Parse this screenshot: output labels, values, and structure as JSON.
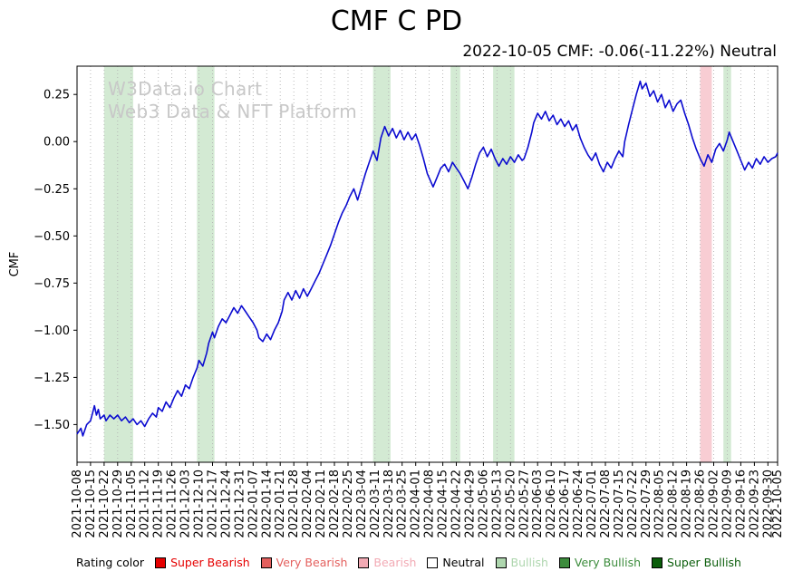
{
  "title": "CMF C PD",
  "subtitle": "2022-10-05 CMF: -0.06(-11.22%) Neutral",
  "watermark": {
    "line1": "W3Data.io Chart",
    "line2": "Web3 Data & NFT Platform"
  },
  "legend": {
    "label": "Rating color",
    "items": [
      {
        "label": "Super Bearish",
        "color": "#e50000",
        "text_color": "#e50000"
      },
      {
        "label": "Very Bearish",
        "color": "#e4605e",
        "text_color": "#e4605e"
      },
      {
        "label": "Bearish",
        "color": "#f2aab4",
        "text_color": "#f2aab4"
      },
      {
        "label": "Neutral",
        "color": "#ffffff",
        "text_color": "#000000"
      },
      {
        "label": "Bullish",
        "color": "#aed6ae",
        "text_color": "#aed6ae"
      },
      {
        "label": "Very Bullish",
        "color": "#3c8c3c",
        "text_color": "#3c8c3c"
      },
      {
        "label": "Super Bullish",
        "color": "#0a5d0a",
        "text_color": "#0a5d0a"
      }
    ]
  },
  "chart_data": {
    "type": "line",
    "title": "CMF C PD",
    "ylabel": "CMF",
    "x_axis": "weekly date ticks from 2021-10-08 to 2022-10-05 (x unit = days since 2021-10-08)",
    "x_max_day": 362,
    "ylim": [
      -1.7,
      0.4
    ],
    "grid": "vertical dotted gridlines at every date tick, no horizontal gridlines",
    "legend_position": "bottom",
    "line_color": "#0b0bd0",
    "y_ticks": [
      [
        0.25,
        "0.25"
      ],
      [
        0.0,
        "0.00"
      ],
      [
        -0.25,
        "−0.25"
      ],
      [
        -0.5,
        "−0.50"
      ],
      [
        -0.75,
        "−0.75"
      ],
      [
        -1.0,
        "−1.00"
      ],
      [
        -1.25,
        "−1.25"
      ],
      [
        -1.5,
        "−1.50"
      ]
    ],
    "x_ticks": [
      [
        0,
        "2021-10-08"
      ],
      [
        7,
        "2021-10-15"
      ],
      [
        14,
        "2021-10-22"
      ],
      [
        21,
        "2021-10-29"
      ],
      [
        28,
        "2021-11-05"
      ],
      [
        35,
        "2021-11-12"
      ],
      [
        42,
        "2021-11-19"
      ],
      [
        49,
        "2021-11-26"
      ],
      [
        56,
        "2021-12-03"
      ],
      [
        63,
        "2021-12-10"
      ],
      [
        70,
        "2021-12-17"
      ],
      [
        77,
        "2021-12-24"
      ],
      [
        84,
        "2021-12-31"
      ],
      [
        91,
        "2022-01-07"
      ],
      [
        98,
        "2022-01-14"
      ],
      [
        105,
        "2022-01-21"
      ],
      [
        112,
        "2022-01-28"
      ],
      [
        119,
        "2022-02-04"
      ],
      [
        126,
        "2022-02-11"
      ],
      [
        133,
        "2022-02-18"
      ],
      [
        140,
        "2022-02-25"
      ],
      [
        147,
        "2022-03-04"
      ],
      [
        154,
        "2022-03-11"
      ],
      [
        161,
        "2022-03-18"
      ],
      [
        168,
        "2022-03-25"
      ],
      [
        175,
        "2022-04-01"
      ],
      [
        182,
        "2022-04-08"
      ],
      [
        189,
        "2022-04-15"
      ],
      [
        196,
        "2022-04-22"
      ],
      [
        203,
        "2022-04-29"
      ],
      [
        210,
        "2022-05-06"
      ],
      [
        217,
        "2022-05-13"
      ],
      [
        224,
        "2022-05-20"
      ],
      [
        231,
        "2022-05-27"
      ],
      [
        238,
        "2022-06-03"
      ],
      [
        245,
        "2022-06-10"
      ],
      [
        252,
        "2022-06-17"
      ],
      [
        259,
        "2022-06-24"
      ],
      [
        266,
        "2022-07-01"
      ],
      [
        273,
        "2022-07-08"
      ],
      [
        280,
        "2022-07-15"
      ],
      [
        287,
        "2022-07-22"
      ],
      [
        294,
        "2022-07-29"
      ],
      [
        301,
        "2022-08-05"
      ],
      [
        308,
        "2022-08-12"
      ],
      [
        315,
        "2022-08-19"
      ],
      [
        322,
        "2022-08-26"
      ],
      [
        329,
        "2022-09-02"
      ],
      [
        336,
        "2022-09-09"
      ],
      [
        343,
        "2022-09-16"
      ],
      [
        350,
        "2022-09-23"
      ],
      [
        357,
        "2022-09-30"
      ],
      [
        362,
        "2022-10-05"
      ]
    ],
    "band_colors": {
      "Bullish": "rgba(140,200,140,0.38)",
      "Bearish": "rgba(238,130,145,0.40)"
    },
    "bands": [
      {
        "start_day": 14,
        "end_day": 29,
        "rating": "Bullish"
      },
      {
        "start_day": 62,
        "end_day": 71,
        "rating": "Bullish"
      },
      {
        "start_day": 153,
        "end_day": 162,
        "rating": "Bullish"
      },
      {
        "start_day": 193,
        "end_day": 198,
        "rating": "Bullish"
      },
      {
        "start_day": 215,
        "end_day": 226,
        "rating": "Bullish"
      },
      {
        "start_day": 322,
        "end_day": 328,
        "rating": "Bearish"
      },
      {
        "start_day": 334,
        "end_day": 338,
        "rating": "Bullish"
      }
    ],
    "last_value": {
      "date": "2022-10-05",
      "cmf": -0.06,
      "change_pct": -11.22,
      "rating": "Neutral"
    },
    "series": [
      {
        "name": "CMF",
        "points": [
          [
            0,
            -1.55
          ],
          [
            2,
            -1.52
          ],
          [
            3,
            -1.56
          ],
          [
            5,
            -1.5
          ],
          [
            7,
            -1.48
          ],
          [
            8,
            -1.44
          ],
          [
            9,
            -1.4
          ],
          [
            10,
            -1.45
          ],
          [
            11,
            -1.42
          ],
          [
            12,
            -1.47
          ],
          [
            14,
            -1.45
          ],
          [
            15,
            -1.48
          ],
          [
            17,
            -1.45
          ],
          [
            19,
            -1.47
          ],
          [
            21,
            -1.45
          ],
          [
            23,
            -1.48
          ],
          [
            25,
            -1.46
          ],
          [
            27,
            -1.49
          ],
          [
            29,
            -1.47
          ],
          [
            31,
            -1.5
          ],
          [
            33,
            -1.48
          ],
          [
            35,
            -1.51
          ],
          [
            37,
            -1.47
          ],
          [
            39,
            -1.44
          ],
          [
            41,
            -1.46
          ],
          [
            42,
            -1.41
          ],
          [
            44,
            -1.43
          ],
          [
            46,
            -1.38
          ],
          [
            48,
            -1.41
          ],
          [
            50,
            -1.36
          ],
          [
            52,
            -1.32
          ],
          [
            54,
            -1.35
          ],
          [
            56,
            -1.29
          ],
          [
            58,
            -1.31
          ],
          [
            60,
            -1.25
          ],
          [
            62,
            -1.2
          ],
          [
            63,
            -1.16
          ],
          [
            65,
            -1.19
          ],
          [
            67,
            -1.12
          ],
          [
            68,
            -1.07
          ],
          [
            70,
            -1.01
          ],
          [
            71,
            -1.04
          ],
          [
            73,
            -0.98
          ],
          [
            75,
            -0.94
          ],
          [
            77,
            -0.96
          ],
          [
            79,
            -0.92
          ],
          [
            81,
            -0.88
          ],
          [
            83,
            -0.91
          ],
          [
            85,
            -0.87
          ],
          [
            87,
            -0.9
          ],
          [
            89,
            -0.93
          ],
          [
            91,
            -0.96
          ],
          [
            93,
            -1.0
          ],
          [
            94,
            -1.04
          ],
          [
            96,
            -1.06
          ],
          [
            98,
            -1.02
          ],
          [
            100,
            -1.05
          ],
          [
            102,
            -1.0
          ],
          [
            104,
            -0.96
          ],
          [
            106,
            -0.9
          ],
          [
            107,
            -0.84
          ],
          [
            109,
            -0.8
          ],
          [
            111,
            -0.84
          ],
          [
            113,
            -0.79
          ],
          [
            115,
            -0.83
          ],
          [
            117,
            -0.78
          ],
          [
            119,
            -0.82
          ],
          [
            121,
            -0.78
          ],
          [
            123,
            -0.74
          ],
          [
            125,
            -0.7
          ],
          [
            127,
            -0.65
          ],
          [
            129,
            -0.6
          ],
          [
            131,
            -0.55
          ],
          [
            133,
            -0.49
          ],
          [
            135,
            -0.43
          ],
          [
            137,
            -0.38
          ],
          [
            139,
            -0.34
          ],
          [
            141,
            -0.29
          ],
          [
            143,
            -0.25
          ],
          [
            145,
            -0.31
          ],
          [
            147,
            -0.24
          ],
          [
            149,
            -0.17
          ],
          [
            151,
            -0.11
          ],
          [
            153,
            -0.05
          ],
          [
            155,
            -0.1
          ],
          [
            157,
            0.02
          ],
          [
            159,
            0.08
          ],
          [
            161,
            0.03
          ],
          [
            163,
            0.07
          ],
          [
            165,
            0.02
          ],
          [
            167,
            0.06
          ],
          [
            169,
            0.01
          ],
          [
            171,
            0.05
          ],
          [
            173,
            0.01
          ],
          [
            175,
            0.04
          ],
          [
            177,
            -0.02
          ],
          [
            179,
            -0.09
          ],
          [
            181,
            -0.17
          ],
          [
            184,
            -0.24
          ],
          [
            186,
            -0.19
          ],
          [
            188,
            -0.14
          ],
          [
            190,
            -0.12
          ],
          [
            192,
            -0.16
          ],
          [
            194,
            -0.11
          ],
          [
            196,
            -0.14
          ],
          [
            198,
            -0.17
          ],
          [
            200,
            -0.21
          ],
          [
            202,
            -0.25
          ],
          [
            204,
            -0.19
          ],
          [
            206,
            -0.12
          ],
          [
            208,
            -0.06
          ],
          [
            210,
            -0.03
          ],
          [
            212,
            -0.08
          ],
          [
            214,
            -0.04
          ],
          [
            216,
            -0.09
          ],
          [
            218,
            -0.13
          ],
          [
            220,
            -0.09
          ],
          [
            222,
            -0.12
          ],
          [
            224,
            -0.08
          ],
          [
            226,
            -0.11
          ],
          [
            228,
            -0.07
          ],
          [
            230,
            -0.1
          ],
          [
            231,
            -0.09
          ],
          [
            233,
            -0.03
          ],
          [
            235,
            0.05
          ],
          [
            236,
            0.1
          ],
          [
            238,
            0.15
          ],
          [
            240,
            0.12
          ],
          [
            242,
            0.16
          ],
          [
            244,
            0.11
          ],
          [
            246,
            0.14
          ],
          [
            248,
            0.09
          ],
          [
            250,
            0.12
          ],
          [
            252,
            0.08
          ],
          [
            254,
            0.11
          ],
          [
            256,
            0.06
          ],
          [
            258,
            0.09
          ],
          [
            260,
            0.02
          ],
          [
            262,
            -0.03
          ],
          [
            264,
            -0.07
          ],
          [
            266,
            -0.1
          ],
          [
            268,
            -0.06
          ],
          [
            270,
            -0.12
          ],
          [
            272,
            -0.16
          ],
          [
            274,
            -0.11
          ],
          [
            276,
            -0.14
          ],
          [
            278,
            -0.09
          ],
          [
            280,
            -0.05
          ],
          [
            282,
            -0.08
          ],
          [
            283,
            0.0
          ],
          [
            285,
            0.09
          ],
          [
            287,
            0.17
          ],
          [
            289,
            0.25
          ],
          [
            291,
            0.32
          ],
          [
            292,
            0.28
          ],
          [
            294,
            0.31
          ],
          [
            296,
            0.24
          ],
          [
            298,
            0.27
          ],
          [
            300,
            0.21
          ],
          [
            302,
            0.25
          ],
          [
            304,
            0.18
          ],
          [
            306,
            0.22
          ],
          [
            308,
            0.16
          ],
          [
            310,
            0.2
          ],
          [
            312,
            0.22
          ],
          [
            314,
            0.15
          ],
          [
            316,
            0.09
          ],
          [
            318,
            0.02
          ],
          [
            320,
            -0.04
          ],
          [
            322,
            -0.09
          ],
          [
            324,
            -0.13
          ],
          [
            326,
            -0.07
          ],
          [
            328,
            -0.11
          ],
          [
            330,
            -0.04
          ],
          [
            332,
            -0.01
          ],
          [
            334,
            -0.05
          ],
          [
            336,
            0.01
          ],
          [
            337,
            0.05
          ],
          [
            339,
            0.0
          ],
          [
            341,
            -0.05
          ],
          [
            343,
            -0.1
          ],
          [
            345,
            -0.15
          ],
          [
            347,
            -0.11
          ],
          [
            349,
            -0.14
          ],
          [
            351,
            -0.09
          ],
          [
            353,
            -0.12
          ],
          [
            355,
            -0.08
          ],
          [
            357,
            -0.11
          ],
          [
            359,
            -0.09
          ],
          [
            361,
            -0.08
          ],
          [
            362,
            -0.06
          ]
        ]
      }
    ]
  }
}
